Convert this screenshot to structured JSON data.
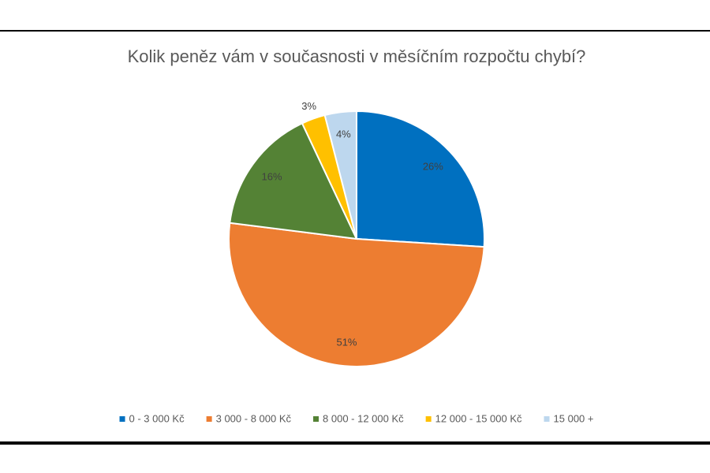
{
  "chart_data": {
    "type": "pie",
    "title": "Kolik peněz vám v současnosti v měsíčním rozpočtu chybí?",
    "categories": [
      "0 - 3 000 Kč",
      "3 000 - 8 000 Kč",
      "8 000 - 12 000 Kč",
      "12 000 - 15 000 Kč",
      "15 000 +"
    ],
    "values": [
      26,
      51,
      16,
      3,
      4
    ],
    "value_labels": [
      "26%",
      "51%",
      "16%",
      "3%",
      "4%"
    ],
    "colors": [
      "#0070c0",
      "#ed7d31",
      "#548235",
      "#ffc000",
      "#bdd7ee"
    ],
    "legend": "bottom"
  }
}
